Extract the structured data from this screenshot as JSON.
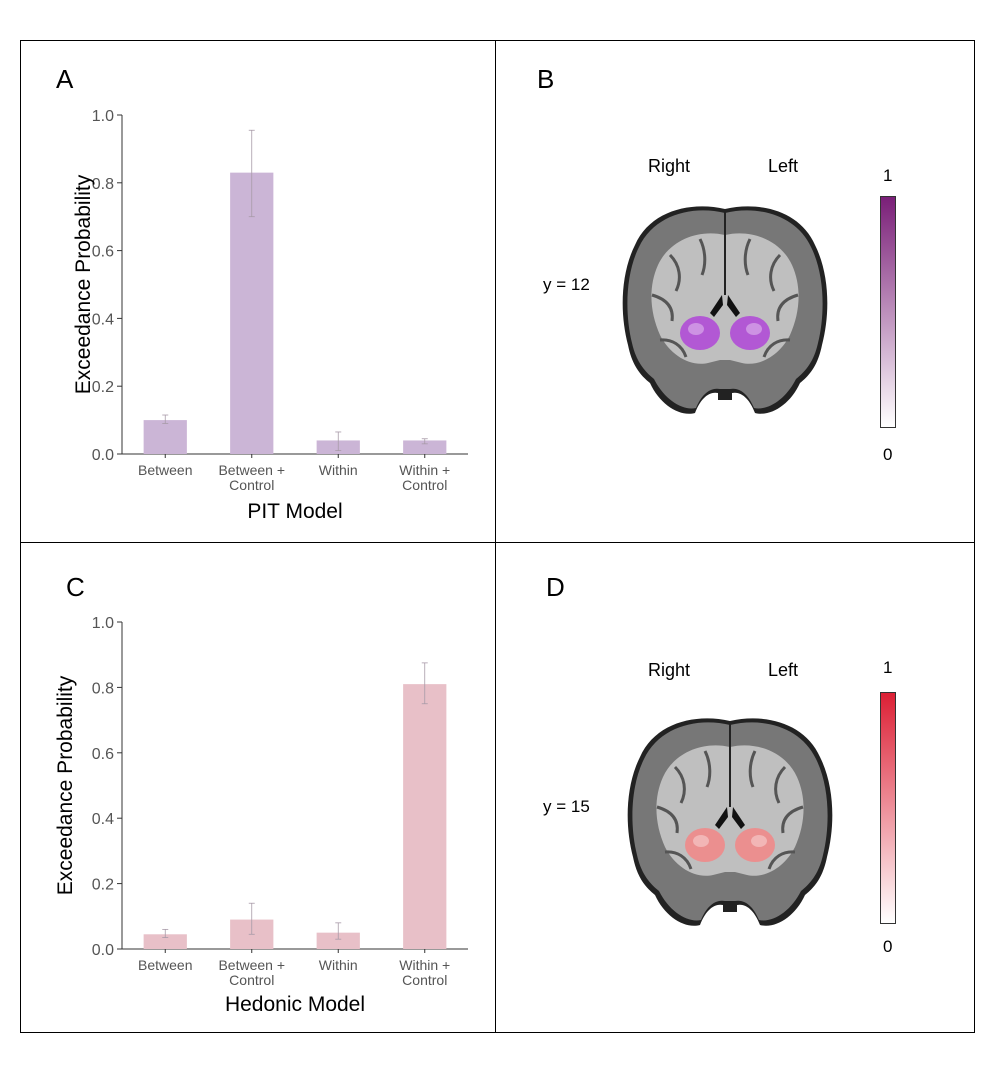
{
  "panels": {
    "a": {
      "letter": "A"
    },
    "b": {
      "letter": "B",
      "right_label": "Right",
      "left_label": "Left",
      "slice_label": "y = 12",
      "colorbar": {
        "max": "1",
        "min": "0",
        "color_high": "#7a1f78",
        "color_low": "#ffffff"
      },
      "blob_color": "#b04cd6"
    },
    "c": {
      "letter": "C"
    },
    "d": {
      "letter": "D",
      "right_label": "Right",
      "left_label": "Left",
      "slice_label": "y = 15",
      "colorbar": {
        "max": "1",
        "min": "0",
        "color_high": "#dc2035",
        "color_low": "#ffffff"
      },
      "blob_color": "#f08a8a"
    }
  },
  "chart_data": [
    {
      "type": "bar",
      "categories": [
        "Between",
        "Between +\nControl",
        "Within",
        "Within +\nControl"
      ],
      "values": [
        0.1,
        0.83,
        0.04,
        0.04
      ],
      "error": [
        [
          0.09,
          0.115
        ],
        [
          0.7,
          0.955
        ],
        [
          0.01,
          0.065
        ],
        [
          0.03,
          0.045
        ]
      ],
      "xlabel": "PIT Model",
      "ylabel": "Exceedance Probability",
      "ylim": [
        0,
        1.0
      ],
      "yticks": [
        "0.0",
        "0.2",
        "0.4",
        "0.6",
        "0.8",
        "1.0"
      ],
      "bar_color": "#cbb5d6"
    },
    {
      "type": "bar",
      "categories": [
        "Between",
        "Between +\nControl",
        "Within",
        "Within +\nControl"
      ],
      "values": [
        0.045,
        0.09,
        0.05,
        0.81
      ],
      "error": [
        [
          0.035,
          0.06
        ],
        [
          0.045,
          0.14
        ],
        [
          0.03,
          0.08
        ],
        [
          0.75,
          0.875
        ]
      ],
      "xlabel": "Hedonic Model",
      "ylabel": "Exceedance Probability",
      "ylim": [
        0,
        1.0
      ],
      "yticks": [
        "0.0",
        "0.2",
        "0.4",
        "0.6",
        "0.8",
        "1.0"
      ],
      "bar_color": "#e8c0c8"
    }
  ]
}
